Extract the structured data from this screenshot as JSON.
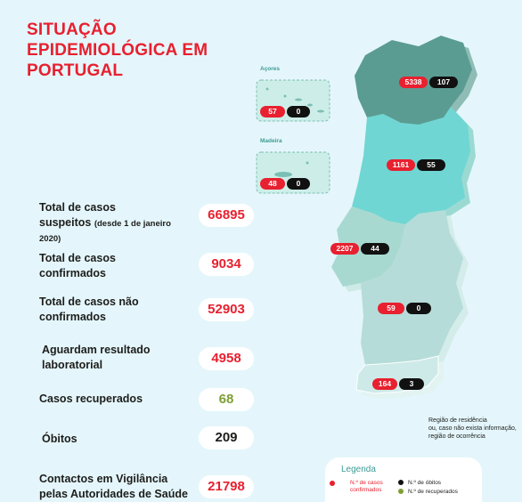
{
  "title": {
    "line1": "SITUAÇÃO",
    "line2": "EPIDEMIOLÓGICA EM",
    "line3": "PORTUGAL"
  },
  "stats": [
    {
      "label_line1": "Total de casos",
      "label_line2": "suspeitos",
      "label_small": "(desde 1 de janeiro",
      "label_line3": "2020)",
      "value": "66895",
      "color": "#e8202f"
    },
    {
      "label_line1": "Total de casos",
      "label_line2": "confirmados",
      "value": "9034",
      "color": "#e8202f"
    },
    {
      "label_line1": "Total de casos não",
      "label_line2": "confirmados",
      "value": "52903",
      "color": "#e8202f"
    },
    {
      "label_line1": "Aguardam resultado",
      "label_line2": "laboratorial",
      "value": "4958",
      "color": "#e8202f"
    },
    {
      "label_line1": "Casos recuperados",
      "value": "68",
      "color": "#7f9e34"
    },
    {
      "label_line1": "Óbitos",
      "value": "209",
      "color": "#1d1d1b"
    },
    {
      "label_line1": "Contactos em Vigilância",
      "label_line2": "pelas Autoridades de Saúde",
      "value": "21798",
      "color": "#e8202f"
    }
  ],
  "islands": {
    "acores": {
      "label": "Açores",
      "cases": "57",
      "deaths": "0"
    },
    "madeira": {
      "label": "Madeira",
      "cases": "48",
      "deaths": "0"
    }
  },
  "regions": {
    "norte": {
      "cases": "5338",
      "deaths": "107",
      "color": "#5b9c92"
    },
    "centro": {
      "cases": "1161",
      "deaths": "55",
      "color": "#6fd6d3"
    },
    "lisboa": {
      "cases": "2207",
      "deaths": "44",
      "color": "#a8d9d1"
    },
    "alentejo": {
      "cases": "59",
      "deaths": "0",
      "color": "#b5dcd8"
    },
    "algarve": {
      "cases": "164",
      "deaths": "3",
      "color": "#cdeae8"
    }
  },
  "note": {
    "line1": "Região de residência",
    "line2": "ou, caso não exista informação,",
    "line3": "região de ocorrência"
  },
  "legend": {
    "title": "Legenda",
    "confirmed_line1": "N.º de casos",
    "confirmed_line2": "confirmados",
    "deaths": "N.º de óbitos",
    "recovered": "N.º de recuperados"
  }
}
